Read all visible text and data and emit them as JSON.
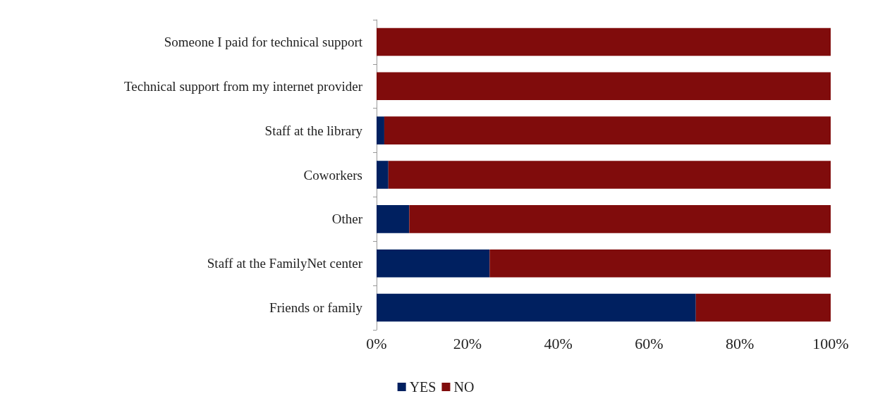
{
  "chart_data": {
    "type": "bar",
    "orientation": "horizontal",
    "stacked": true,
    "categories": [
      "Someone I paid for technical support",
      "Technical support from my internet provider",
      "Staff at the library",
      "Coworkers",
      "Other",
      "Staff at the FamilyNet center",
      "Friends or family"
    ],
    "series": [
      {
        "name": "YES",
        "color": "#002060",
        "values": [
          0,
          0,
          1.7,
          2.6,
          7.2,
          24.9,
          70.3
        ]
      },
      {
        "name": "NO",
        "color": "#800c0c",
        "values": [
          100,
          100,
          98.3,
          97.4,
          92.8,
          75.1,
          29.7
        ]
      }
    ],
    "xlim": [
      0,
      100
    ],
    "xticks": [
      {
        "value": 0,
        "label": "0%"
      },
      {
        "value": 20,
        "label": "20%"
      },
      {
        "value": 40,
        "label": "40%"
      },
      {
        "value": 60,
        "label": "60%"
      },
      {
        "value": 80,
        "label": "80%"
      },
      {
        "value": 100,
        "label": "100%"
      }
    ],
    "legend": "bottom"
  }
}
